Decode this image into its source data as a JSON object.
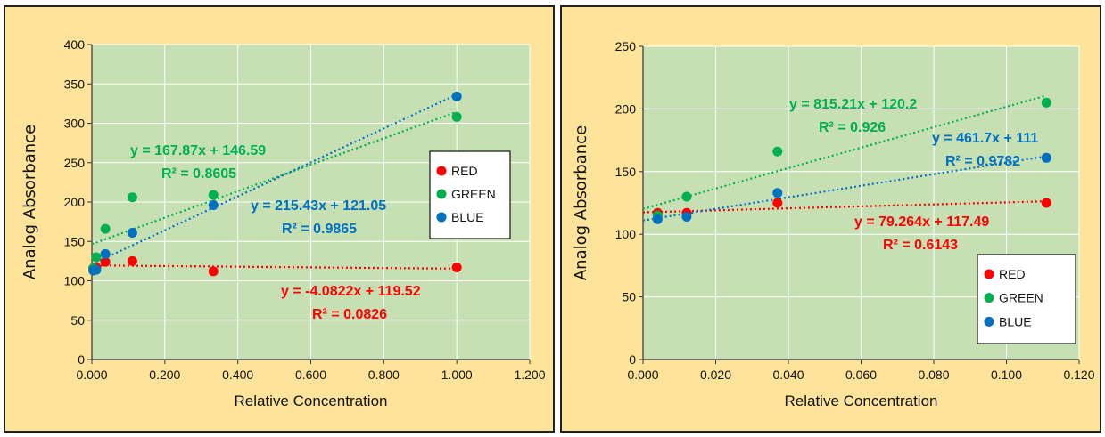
{
  "chart_data": [
    {
      "type": "scatter",
      "xlabel": "Relative Concentration",
      "ylabel": "Analog Absorbance",
      "xlim": [
        0,
        1.2
      ],
      "ylim": [
        0,
        400
      ],
      "x_ticks": [
        "0.000",
        "0.200",
        "0.400",
        "0.600",
        "0.800",
        "1.000",
        "1.200"
      ],
      "y_ticks": [
        "0",
        "50",
        "100",
        "150",
        "200",
        "250",
        "300",
        "350",
        "400"
      ],
      "grid": true,
      "legend_position": "right",
      "series": [
        {
          "name": "RED",
          "color": "#ff0000",
          "points": [
            [
              0.004,
              116
            ],
            [
              0.012,
              117
            ],
            [
              0.037,
              124
            ],
            [
              0.111,
              125
            ],
            [
              0.333,
              112
            ],
            [
              1.0,
              117
            ]
          ],
          "trendline": {
            "slope": -4.0822,
            "intercept": 119.52
          },
          "equation": "y = -4.0822x + 119.52",
          "r2": "R² = 0.0826"
        },
        {
          "name": "GREEN",
          "color": "#00b050",
          "points": [
            [
              0.004,
              116
            ],
            [
              0.012,
              130
            ],
            [
              0.037,
              166
            ],
            [
              0.111,
              206
            ],
            [
              0.333,
              209
            ],
            [
              1.0,
              308
            ]
          ],
          "trendline": {
            "slope": 167.87,
            "intercept": 146.59
          },
          "equation": "y = 167.87x + 146.59",
          "r2": "R² = 0.8605"
        },
        {
          "name": "BLUE",
          "color": "#0070c0",
          "points": [
            [
              0.004,
              113
            ],
            [
              0.012,
              114
            ],
            [
              0.037,
              134
            ],
            [
              0.111,
              161
            ],
            [
              0.333,
              196
            ],
            [
              1.0,
              334
            ]
          ],
          "trendline": {
            "slope": 215.43,
            "intercept": 121.05
          },
          "equation": "y = 215.43x + 121.05",
          "r2": "R² = 0.9865"
        }
      ]
    },
    {
      "type": "scatter",
      "xlabel": "Relative Concentration",
      "ylabel": "Analog Absorbance",
      "xlim": [
        0,
        0.12
      ],
      "ylim": [
        0,
        250
      ],
      "x_ticks": [
        "0.000",
        "0.020",
        "0.040",
        "0.060",
        "0.080",
        "0.100",
        "0.120"
      ],
      "y_ticks": [
        "0",
        "50",
        "100",
        "150",
        "200",
        "250"
      ],
      "grid": true,
      "legend_position": "bottom-right",
      "series": [
        {
          "name": "RED",
          "color": "#ff0000",
          "points": [
            [
              0.004,
              117
            ],
            [
              0.012,
              117
            ],
            [
              0.037,
              125
            ],
            [
              0.111,
              125
            ]
          ],
          "trendline": {
            "slope": 79.264,
            "intercept": 117.49
          },
          "equation": "y = 79.264x + 117.49",
          "r2": "R² = 0.6143"
        },
        {
          "name": "GREEN",
          "color": "#00b050",
          "points": [
            [
              0.004,
              115
            ],
            [
              0.012,
              130
            ],
            [
              0.037,
              166
            ],
            [
              0.111,
              205
            ]
          ],
          "trendline": {
            "slope": 815.21,
            "intercept": 120.2
          },
          "equation": "y = 815.21x + 120.2",
          "r2": "R² = 0.926"
        },
        {
          "name": "BLUE",
          "color": "#0070c0",
          "points": [
            [
              0.004,
              112
            ],
            [
              0.012,
              114
            ],
            [
              0.037,
              133
            ],
            [
              0.111,
              161
            ]
          ],
          "trendline": {
            "slope": 461.7,
            "intercept": 111
          },
          "equation": "y = 461.7x + 111",
          "r2": "R² = 0.9782"
        }
      ]
    }
  ]
}
